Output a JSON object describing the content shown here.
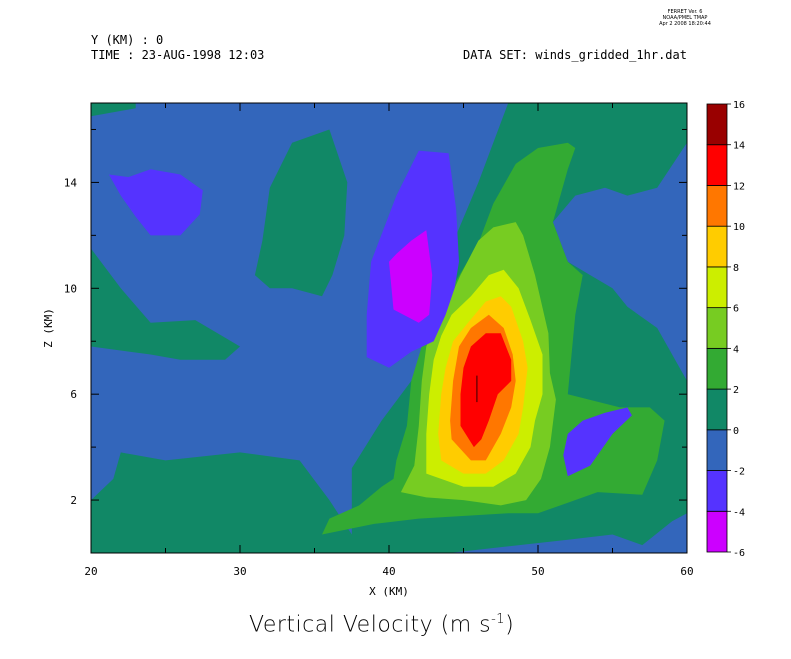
{
  "header": {
    "y_line": "Y (KM) : 0",
    "time_line": "TIME : 23-AUG-1998 12:03",
    "dataset_line": "DATA SET: winds_gridded_1hr.dat",
    "stamp": [
      "FERRET Ver. 6",
      "NOAA/PMEL TMAP",
      "Apr  2 2008 18:20:44"
    ]
  },
  "chart_data": {
    "type": "heatmap",
    "title": "Vertical Velocity (m s",
    "title_sup": "-1",
    "title_close": ")",
    "xlabel": "X (KM)",
    "ylabel": "Z (KM)",
    "xlim": [
      20,
      60
    ],
    "ylim": [
      0,
      17
    ],
    "x_ticks": [
      20,
      30,
      40,
      50,
      60
    ],
    "y_ticks": [
      2,
      6,
      10,
      14
    ],
    "x_minor_step": 5,
    "y_minor_step": 2,
    "levels": [
      -6,
      -4,
      -2,
      0,
      2,
      4,
      6,
      8,
      10,
      12,
      14,
      16
    ],
    "level_colors": [
      "#cc00ff",
      "#5533ff",
      "#3366bb",
      "#118866",
      "#33aa33",
      "#77cc22",
      "#ccee00",
      "#ffcc00",
      "#ff7700",
      "#ff0000",
      "#990000"
    ],
    "peak": {
      "x": 46,
      "z": 6.5,
      "value": 14
    },
    "min_region": {
      "x": 41.5,
      "z": 10,
      "value": -6
    },
    "regions": [
      {
        "level": -2,
        "pts": [
          [
            20,
            0
          ],
          [
            60,
            0
          ],
          [
            60,
            17
          ],
          [
            20,
            17
          ]
        ]
      },
      {
        "level": 0,
        "pts": [
          [
            37.5,
            0.7
          ],
          [
            36,
            2
          ],
          [
            34,
            3.5
          ],
          [
            30,
            3.8
          ],
          [
            25,
            3.5
          ],
          [
            22,
            3.8
          ],
          [
            21.5,
            2.8
          ],
          [
            20,
            2
          ],
          [
            20,
            0
          ],
          [
            26,
            0
          ],
          [
            39,
            0
          ],
          [
            44,
            0
          ],
          [
            52,
            0.5
          ],
          [
            55,
            0.7
          ],
          [
            57,
            0.3
          ],
          [
            59,
            1.2
          ],
          [
            60,
            1.5
          ],
          [
            60,
            6.5
          ],
          [
            58,
            8.5
          ],
          [
            56,
            9.3
          ],
          [
            55,
            10
          ],
          [
            53.5,
            10.5
          ],
          [
            52,
            11
          ],
          [
            51,
            12.5
          ],
          [
            52.5,
            13.5
          ],
          [
            54.5,
            13.8
          ],
          [
            56,
            13.5
          ],
          [
            58,
            13.8
          ],
          [
            60,
            15.5
          ],
          [
            60,
            17
          ],
          [
            48,
            17
          ],
          [
            46,
            14
          ],
          [
            44.5,
            12
          ],
          [
            43.5,
            9
          ],
          [
            41.5,
            6.5
          ],
          [
            39.5,
            5
          ],
          [
            37.5,
            3.2
          ],
          [
            37.5,
            2
          ]
        ]
      },
      {
        "level": 0,
        "pts": [
          [
            20,
            11.5
          ],
          [
            22,
            10
          ],
          [
            24,
            8.7
          ],
          [
            27,
            8.8
          ],
          [
            30,
            7.8
          ],
          [
            29,
            7.3
          ],
          [
            26,
            7.3
          ],
          [
            24,
            7.5
          ],
          [
            20,
            7.8
          ]
        ]
      },
      {
        "level": 0,
        "pts": [
          [
            31.5,
            11.8
          ],
          [
            32,
            13.8
          ],
          [
            33.5,
            15.5
          ],
          [
            36,
            16
          ],
          [
            37.2,
            14
          ],
          [
            37,
            12
          ],
          [
            36.2,
            10.5
          ],
          [
            35.5,
            9.7
          ],
          [
            33.5,
            10
          ],
          [
            32,
            10
          ],
          [
            31,
            10.5
          ]
        ]
      },
      {
        "level": 0,
        "pts": [
          [
            20,
            16.5
          ],
          [
            23,
            16.8
          ],
          [
            23,
            17
          ],
          [
            20,
            17
          ]
        ]
      },
      {
        "level": 2,
        "pts": [
          [
            35.5,
            0.7
          ],
          [
            39,
            1.1
          ],
          [
            42,
            1.3
          ],
          [
            48,
            1.5
          ],
          [
            50,
            1.5
          ],
          [
            52,
            1.9
          ],
          [
            54,
            2.3
          ],
          [
            57,
            2.2
          ],
          [
            58,
            3.5
          ],
          [
            58.5,
            5
          ],
          [
            57.5,
            5.5
          ],
          [
            55.5,
            5.5
          ],
          [
            52,
            6
          ],
          [
            52.5,
            9
          ],
          [
            53,
            10.5
          ],
          [
            52,
            11
          ],
          [
            51,
            12.5
          ],
          [
            52,
            14.5
          ],
          [
            52.5,
            15.3
          ],
          [
            52,
            15.5
          ],
          [
            50,
            15.3
          ],
          [
            48.5,
            14.7
          ],
          [
            47,
            13.2
          ],
          [
            46,
            11.7
          ],
          [
            44.2,
            10
          ],
          [
            42.3,
            8
          ],
          [
            41.5,
            6.5
          ],
          [
            41.2,
            4.8
          ],
          [
            40.5,
            3.5
          ],
          [
            40.3,
            2.8
          ],
          [
            39.5,
            2.5
          ],
          [
            38,
            1.8
          ],
          [
            36,
            1.3
          ]
        ]
      },
      {
        "level": 4,
        "pts": [
          [
            40.8,
            2.3
          ],
          [
            42.5,
            2.1
          ],
          [
            45,
            2
          ],
          [
            47.5,
            1.8
          ],
          [
            49.2,
            2
          ],
          [
            50.2,
            2.8
          ],
          [
            50.8,
            4
          ],
          [
            51.2,
            5.8
          ],
          [
            50.8,
            6.8
          ],
          [
            50.7,
            8.3
          ],
          [
            49.8,
            10.5
          ],
          [
            49,
            12
          ],
          [
            48.5,
            12.5
          ],
          [
            47,
            12.3
          ],
          [
            46,
            11.8
          ],
          [
            44.8,
            10.5
          ],
          [
            44,
            9.5
          ],
          [
            43,
            8.5
          ],
          [
            42.5,
            7.8
          ],
          [
            42.2,
            6.5
          ],
          [
            42,
            4.8
          ],
          [
            41.7,
            3.3
          ]
        ]
      },
      {
        "level": 6,
        "pts": [
          [
            42.5,
            3
          ],
          [
            45,
            2.5
          ],
          [
            47,
            2.5
          ],
          [
            48.5,
            3
          ],
          [
            49.5,
            4
          ],
          [
            49.8,
            5
          ],
          [
            50.3,
            6
          ],
          [
            50.3,
            7.5
          ],
          [
            49.5,
            8.8
          ],
          [
            48.7,
            10
          ],
          [
            47.7,
            10.7
          ],
          [
            46.7,
            10.5
          ],
          [
            45.5,
            9.7
          ],
          [
            44.2,
            9
          ],
          [
            43.5,
            8.2
          ],
          [
            43,
            7.3
          ],
          [
            42.7,
            6
          ],
          [
            42.5,
            4.5
          ]
        ]
      },
      {
        "level": 8,
        "pts": [
          [
            43.5,
            3.5
          ],
          [
            45,
            3
          ],
          [
            46.5,
            3
          ],
          [
            47.7,
            3.5
          ],
          [
            48.7,
            4.5
          ],
          [
            49,
            5.5
          ],
          [
            49.3,
            7
          ],
          [
            49,
            8
          ],
          [
            48.2,
            9.3
          ],
          [
            47.5,
            9.7
          ],
          [
            46.5,
            9.5
          ],
          [
            45.3,
            8.7
          ],
          [
            44.3,
            8
          ],
          [
            43.8,
            7
          ],
          [
            43.5,
            6
          ],
          [
            43.3,
            4.5
          ]
        ]
      },
      {
        "level": 10,
        "pts": [
          [
            44.2,
            4.3
          ],
          [
            45.5,
            3.5
          ],
          [
            46.5,
            3.5
          ],
          [
            47.5,
            4.5
          ],
          [
            48.2,
            5.5
          ],
          [
            48.5,
            6.5
          ],
          [
            48.3,
            7.5
          ],
          [
            47.7,
            8.5
          ],
          [
            46.7,
            9
          ],
          [
            45.5,
            8.5
          ],
          [
            44.7,
            7.8
          ],
          [
            44.3,
            6.5
          ],
          [
            44.1,
            5
          ]
        ]
      },
      {
        "level": 12,
        "pts": [
          [
            44.8,
            4.8
          ],
          [
            45.7,
            4
          ],
          [
            46.2,
            4.3
          ],
          [
            46.7,
            5
          ],
          [
            47.3,
            6
          ],
          [
            48.2,
            6.5
          ],
          [
            48.2,
            7.3
          ],
          [
            47.5,
            8.3
          ],
          [
            46.5,
            8.3
          ],
          [
            45.5,
            7.8
          ],
          [
            45,
            7
          ],
          [
            44.8,
            6
          ]
        ]
      },
      {
        "level": 12,
        "pts": [
          [
            45.9,
            5.7
          ],
          [
            45.9,
            6.7
          ]
        ]
      },
      {
        "level": -4,
        "pts": [
          [
            21.2,
            14.3
          ],
          [
            22.5,
            14.2
          ],
          [
            24,
            14.5
          ],
          [
            26,
            14.3
          ],
          [
            27.5,
            13.7
          ],
          [
            27.3,
            12.8
          ],
          [
            26,
            12
          ],
          [
            24,
            12
          ],
          [
            23,
            12.7
          ],
          [
            22,
            13.5
          ]
        ]
      },
      {
        "level": -4,
        "pts": [
          [
            38.5,
            7.4
          ],
          [
            38.5,
            9
          ],
          [
            38.8,
            11
          ],
          [
            40.5,
            13.5
          ],
          [
            42,
            15.2
          ],
          [
            44,
            15.1
          ],
          [
            44.5,
            13
          ],
          [
            44.7,
            11
          ],
          [
            44.4,
            10
          ],
          [
            43.8,
            9
          ],
          [
            43,
            8
          ],
          [
            41.5,
            7.6
          ],
          [
            40,
            7
          ]
        ]
      },
      {
        "level": -4,
        "pts": [
          [
            51.7,
            3.7
          ],
          [
            52,
            4.5
          ],
          [
            53,
            5
          ],
          [
            54.5,
            5.3
          ],
          [
            56,
            5.5
          ],
          [
            56.3,
            5.2
          ],
          [
            55,
            4.5
          ],
          [
            53.5,
            3.3
          ],
          [
            52,
            2.9
          ]
        ]
      },
      {
        "level": -6,
        "pts": [
          [
            40,
            11
          ],
          [
            40.5,
            11.3
          ],
          [
            41.5,
            11.8
          ],
          [
            42.5,
            12.2
          ],
          [
            42.9,
            10.5
          ],
          [
            42.7,
            9
          ],
          [
            42,
            8.7
          ],
          [
            40.3,
            9.2
          ]
        ]
      }
    ]
  }
}
